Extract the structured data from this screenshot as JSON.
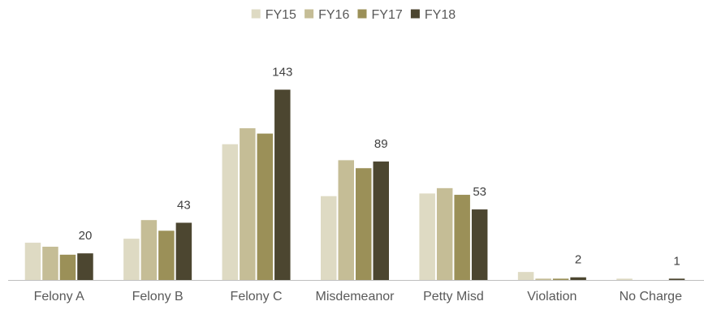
{
  "chart_data": {
    "type": "bar",
    "categories": [
      "Felony A",
      "Felony B",
      "Felony C",
      "Misdemeanor",
      "Petty Misd",
      "Violation",
      "No Charge"
    ],
    "series": [
      {
        "name": "FY15",
        "color": "#dedac3",
        "values": [
          28,
          31,
          102,
          63,
          65,
          6,
          1
        ]
      },
      {
        "name": "FY16",
        "color": "#c5bd96",
        "values": [
          25,
          45,
          114,
          90,
          69,
          1,
          0
        ]
      },
      {
        "name": "FY17",
        "color": "#9b9058",
        "values": [
          19,
          37,
          110,
          84,
          64,
          1,
          0
        ]
      },
      {
        "name": "FY18",
        "color": "#4c4630",
        "values": [
          20,
          43,
          143,
          89,
          53,
          2,
          1
        ]
      }
    ],
    "data_labels": {
      "series": "FY18",
      "values": [
        "20",
        "43",
        "143",
        "89",
        "53",
        "2",
        "1"
      ]
    },
    "ylim": [
      0,
      150
    ],
    "legend": {
      "position": "top-center"
    },
    "grid": false,
    "title": "",
    "xlabel": "",
    "ylabel": ""
  }
}
